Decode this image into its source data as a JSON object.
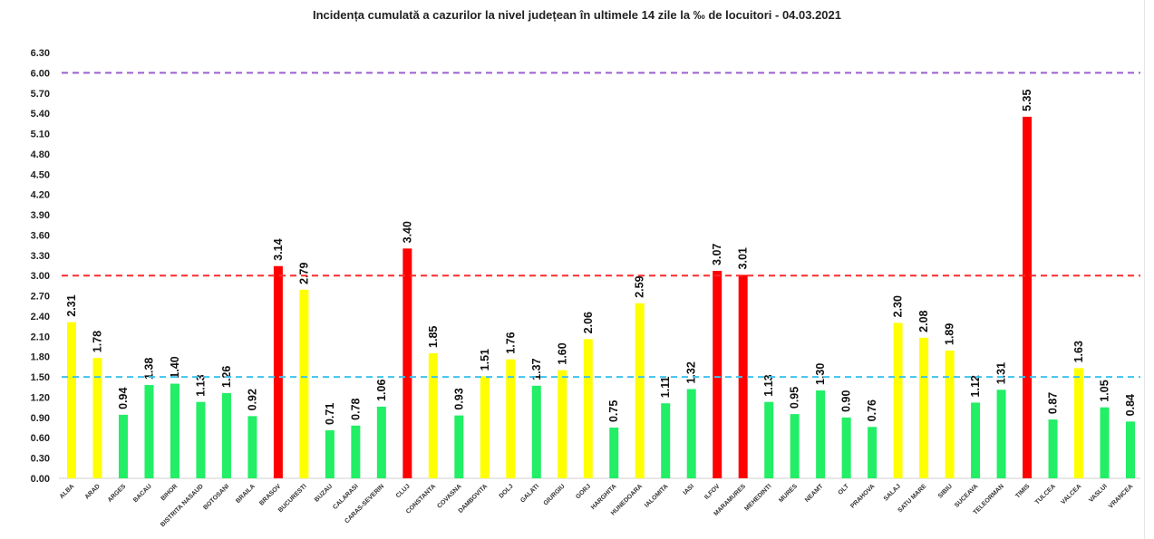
{
  "chart_data": {
    "type": "bar",
    "title": "Incidența cumulată a cazurilor la nivel județean în ultimele 14 zile la ‰ de locuitori - 04.03.2021",
    "xlabel": "",
    "ylabel": "",
    "ylim": [
      0,
      6.3
    ],
    "yticks": [
      "0.00",
      "0.30",
      "0.60",
      "0.90",
      "1.20",
      "1.50",
      "1.80",
      "2.10",
      "2.40",
      "2.70",
      "3.00",
      "3.30",
      "3.60",
      "3.90",
      "4.20",
      "4.50",
      "4.80",
      "5.10",
      "5.40",
      "5.70",
      "6.00",
      "6.30"
    ],
    "grid": false,
    "categories": [
      "ALBA",
      "ARAD",
      "ARGES",
      "BACAU",
      "BIHOR",
      "BISTRITA NASAUD",
      "BOTOSANI",
      "BRAILA",
      "BRASOV",
      "BUCURESTI",
      "BUZAU",
      "CALARASI",
      "CARAS-SEVERIN",
      "CLUJ",
      "CONSTANTA",
      "COVASNA",
      "DAMBOVITA",
      "DOLJ",
      "GALATI",
      "GIURGIU",
      "GORJ",
      "HARGHITA",
      "HUNEDOARA",
      "IALOMITA",
      "IASI",
      "ILFOV",
      "MARAMURES",
      "MEHEDINTI",
      "MURES",
      "NEAMT",
      "OLT",
      "PRAHOVA",
      "SALAJ",
      "SATU MARE",
      "SIBIU",
      "SUCEAVA",
      "TELEORMAN",
      "TIMIS",
      "TULCEA",
      "VALCEA",
      "VASLUI",
      "VRANCEA"
    ],
    "values": [
      2.31,
      1.78,
      0.94,
      1.38,
      1.4,
      1.13,
      1.26,
      0.92,
      3.14,
      2.79,
      0.71,
      0.78,
      1.06,
      3.4,
      1.85,
      0.93,
      1.51,
      1.76,
      1.37,
      1.6,
      2.06,
      0.75,
      2.59,
      1.11,
      1.32,
      3.07,
      3.01,
      1.13,
      0.95,
      1.3,
      0.9,
      0.76,
      2.3,
      2.08,
      1.89,
      1.12,
      1.31,
      5.35,
      0.87,
      1.63,
      1.05,
      0.84
    ],
    "thresholds": [
      {
        "value": 6.0,
        "color": "#9b5fd0"
      },
      {
        "value": 3.0,
        "color": "#ff2a2a"
      },
      {
        "value": 1.5,
        "color": "#3cc3ee"
      }
    ],
    "colors": {
      "green": "#22ee66",
      "yellow": "#ffff00",
      "red": "#ff0000"
    }
  }
}
